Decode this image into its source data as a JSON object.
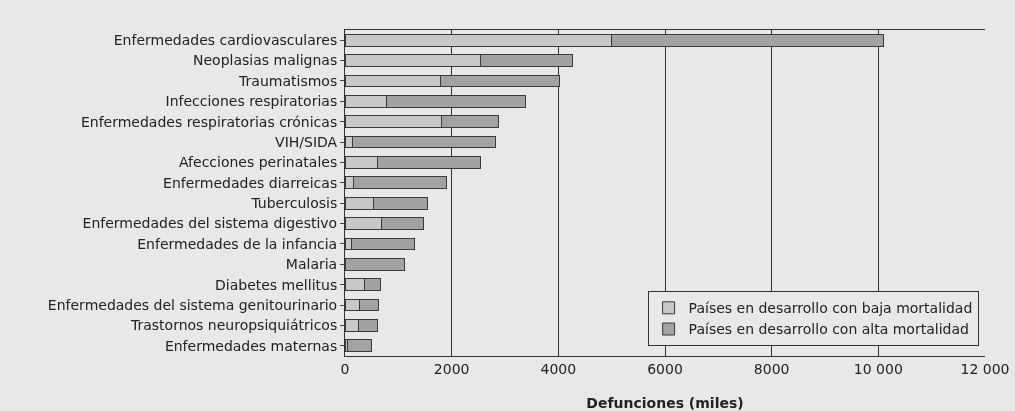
{
  "chart_data": {
    "type": "bar",
    "orientation": "horizontal",
    "stacked": true,
    "categories": [
      "Enfermedades cardiovasculares",
      "Neoplasias malignas",
      "Traumatismos",
      "Infecciones respiratorias",
      "Enfermedades respiratorias crónicas",
      "VIH/SIDA",
      "Afecciones perinatales",
      "Enfermedades diarreicas",
      "Tuberculosis",
      "Enfermedades del sistema digestivo",
      "Enfermedades de la infancia",
      "Malaria",
      "Diabetes mellitus",
      "Enfermedades del sistema genitourinario",
      "Trastornos neuropsiquiátricos",
      "Enfermedades maternas"
    ],
    "series": [
      {
        "name": "Países en desarrollo con baja mortalidad",
        "color": "#c9c7c9",
        "values": [
          5000,
          2540,
          1790,
          780,
          1810,
          140,
          600,
          160,
          530,
          690,
          120,
          0,
          360,
          270,
          250,
          50
        ]
      },
      {
        "name": "Países en desarrollo con alta mortalidad",
        "color": "#a3a1a3",
        "values": [
          5100,
          1720,
          2230,
          2600,
          1060,
          2680,
          1940,
          1750,
          1020,
          780,
          1190,
          1120,
          310,
          350,
          360,
          450
        ]
      }
    ],
    "xlabel": "Defunciones (miles)",
    "xlim": [
      0,
      12000
    ],
    "xticks": [
      0,
      2000,
      4000,
      6000,
      8000,
      {
        "value": 10000,
        "label": "10 000"
      },
      {
        "value": 12000,
        "label": "12 000"
      }
    ],
    "grid": "x",
    "legend": "bottom right"
  }
}
